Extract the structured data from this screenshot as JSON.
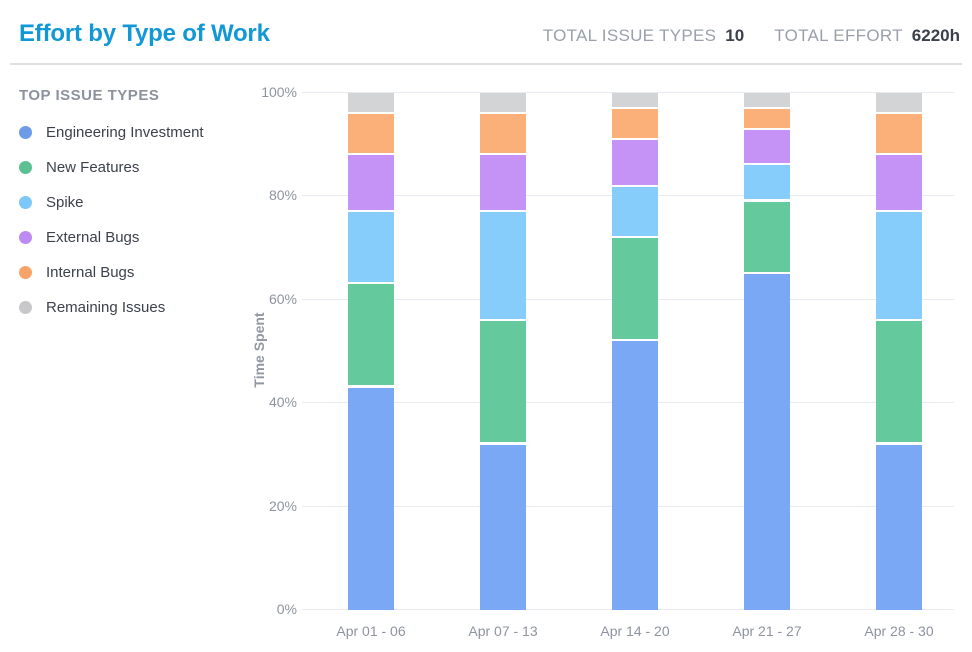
{
  "header": {
    "title": "Effort by Type of Work",
    "totals": [
      {
        "label": "TOTAL ISSUE TYPES",
        "value": "10"
      },
      {
        "label": "TOTAL EFFORT",
        "value": "6220h"
      }
    ]
  },
  "legend": {
    "title": "TOP ISSUE TYPES"
  },
  "colors": {
    "title_accent": "#1298d6",
    "muted_text": "#9aa0ab",
    "dark_text": "#3b414b",
    "axis_text": "#8e949f",
    "gridline": "#e7eaf0"
  },
  "chart_data": {
    "type": "bar",
    "stacked": true,
    "normalized": "percent",
    "title": "Effort by Type of Work",
    "xlabel": "",
    "ylabel": "Time Spent",
    "ylim": [
      0,
      100
    ],
    "y_ticks": [
      0,
      20,
      40,
      60,
      80,
      100
    ],
    "y_tick_suffix": "%",
    "grid": true,
    "legend_position": "left",
    "categories": [
      "Apr 01 - 06",
      "Apr 07 - 13",
      "Apr 14 - 20",
      "Apr 21 - 27",
      "Apr 28 - 30"
    ],
    "series": [
      {
        "name": "Engineering Investment",
        "key": "engineering-investment",
        "color": "#7aa8f5",
        "dot_color": "#6d9be7",
        "values": [
          43,
          32,
          52,
          65,
          32
        ]
      },
      {
        "name": "New Features",
        "key": "new-features",
        "color": "#64c99c",
        "dot_color": "#5cc192",
        "values": [
          20,
          24,
          20,
          14,
          24
        ]
      },
      {
        "name": "Spike",
        "key": "spike",
        "color": "#86cdfb",
        "dot_color": "#7bc8f9",
        "values": [
          14,
          21,
          10,
          7,
          21
        ]
      },
      {
        "name": "External Bugs",
        "key": "external-bugs",
        "color": "#c593f6",
        "dot_color": "#bc8af1",
        "values": [
          11,
          11,
          9,
          7,
          11
        ]
      },
      {
        "name": "Internal Bugs",
        "key": "internal-bugs",
        "color": "#fbb079",
        "dot_color": "#f8a368",
        "values": [
          8,
          8,
          6,
          4,
          8
        ]
      },
      {
        "name": "Remaining Issues",
        "key": "remaining-issues",
        "color": "#d3d4d6",
        "dot_color": "#c8c8cb",
        "values": [
          4,
          4,
          3,
          3,
          4
        ]
      }
    ]
  }
}
